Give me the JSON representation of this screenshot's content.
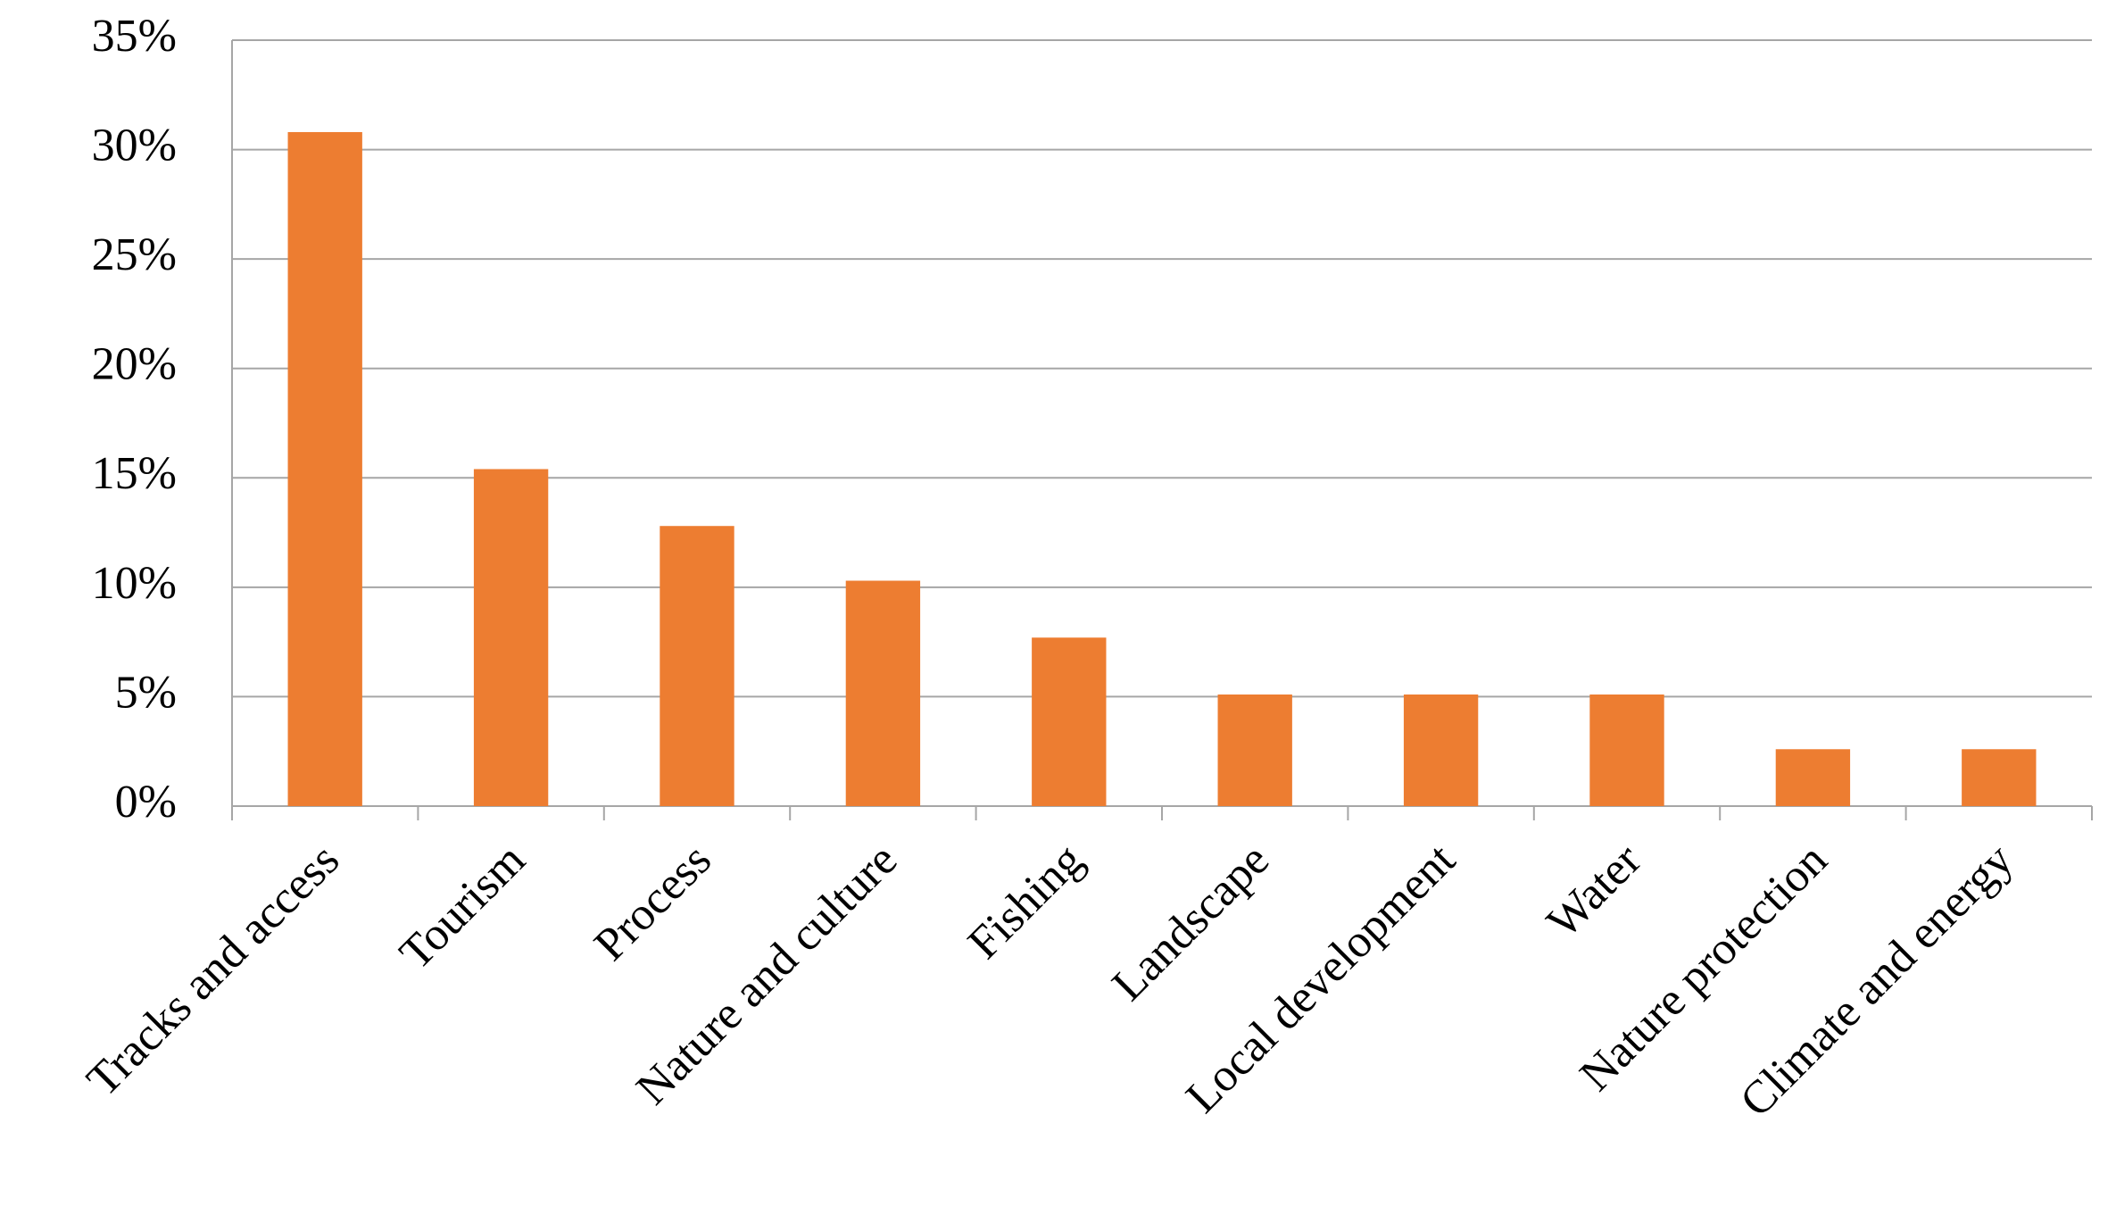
{
  "chart_data": {
    "type": "bar",
    "categories": [
      "Tracks and access",
      "Tourism",
      "Process",
      "Nature and culture",
      "Fishing",
      "Landscape",
      "Local development",
      "Water",
      "Nature protection",
      "Climate and energy"
    ],
    "values": [
      30.8,
      15.4,
      12.8,
      10.3,
      7.7,
      5.1,
      5.1,
      5.1,
      2.6,
      2.6
    ],
    "color": "#ed7d31",
    "ylim": [
      0,
      35
    ],
    "yticks": [
      {
        "value": 0,
        "label": "0%"
      },
      {
        "value": 5,
        "label": "5%"
      },
      {
        "value": 10,
        "label": "10%"
      },
      {
        "value": 15,
        "label": "15%"
      },
      {
        "value": 20,
        "label": "20%"
      },
      {
        "value": 25,
        "label": "25%"
      },
      {
        "value": 30,
        "label": "30%"
      },
      {
        "value": 35,
        "label": "35%"
      }
    ],
    "grid": true
  }
}
